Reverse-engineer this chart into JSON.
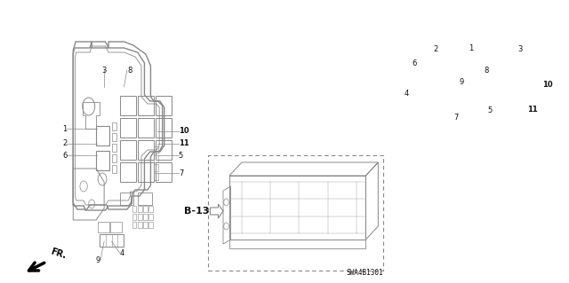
{
  "bg_color": "#ffffff",
  "line_color": "#888888",
  "text_color": "#111111",
  "fig_width": 6.4,
  "fig_height": 3.19,
  "part_number": "SWA4B1301",
  "fr_label": "FR.",
  "b13_label": "B-13"
}
